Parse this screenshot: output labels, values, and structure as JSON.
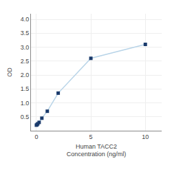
{
  "chart_data": {
    "type": "line",
    "xlabel": "Human TACC2\nConcentration (ng/ml)",
    "ylabel": "OD",
    "x": [
      0,
      0.0625,
      0.125,
      0.25,
      0.5,
      1.0,
      2.0,
      5.0,
      10.0
    ],
    "series": [
      {
        "type": "line",
        "color": "#b8d4e8",
        "line_style": "solid",
        "values": [
          0.2,
          0.22,
          0.25,
          0.3,
          0.45,
          0.7,
          1.35,
          2.6,
          3.1
        ]
      },
      {
        "type": "scatter",
        "color": "#1a3a6b",
        "marker": "square",
        "values": [
          0.2,
          0.22,
          0.25,
          0.3,
          0.45,
          0.7,
          1.35,
          2.6,
          3.1
        ]
      }
    ],
    "xlim": [
      -0.5,
      11.5
    ],
    "xticks": [
      0,
      5,
      10
    ],
    "ylim": [
      0.0,
      4.2
    ],
    "yticks": [
      0.5,
      {
        "value": 1.0,
        "label": "1.0"
      },
      1.5,
      {
        "value": 2.0,
        "label": "2.0"
      },
      2.5,
      {
        "value": 3.0,
        "label": "3.0"
      },
      3.5,
      {
        "value": 4.0,
        "label": "4.0"
      }
    ],
    "grid": true
  }
}
